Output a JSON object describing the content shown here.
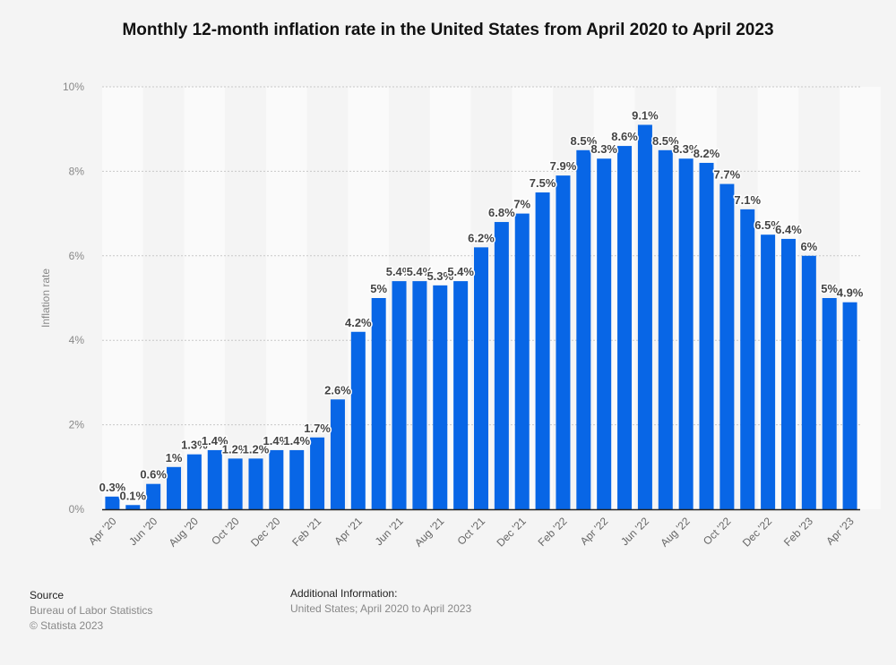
{
  "chart_data": {
    "type": "bar",
    "title": "Monthly 12-month inflation rate in the United States from April 2020 to April 2023",
    "xlabel": "",
    "ylabel": "Inflation rate",
    "ylim": [
      0,
      10
    ],
    "yticks": [
      0,
      2,
      4,
      6,
      8,
      10
    ],
    "ytick_labels": [
      "0%",
      "2%",
      "4%",
      "6%",
      "8%",
      "10%"
    ],
    "grid": true,
    "legend": "none",
    "bar_color": "#0866e6",
    "categories": [
      "Apr '20",
      "May '20",
      "Jun '20",
      "Jul '20",
      "Aug '20",
      "Sep '20",
      "Oct '20",
      "Nov '20",
      "Dec '20",
      "Jan '21",
      "Feb '21",
      "Mar '21",
      "Apr '21",
      "May '21",
      "Jun '21",
      "Jul '21",
      "Aug '21",
      "Sep '21",
      "Oct '21",
      "Nov '21",
      "Dec '21",
      "Jan '22",
      "Feb '22",
      "Mar '22",
      "Apr '22",
      "May '22",
      "Jun '22",
      "Jul '22",
      "Aug '22",
      "Sep '22",
      "Oct '22",
      "Nov '22",
      "Dec '22",
      "Jan '23",
      "Feb '23",
      "Mar '23",
      "Apr '23"
    ],
    "shown_xtick_labels": [
      "Apr '20",
      "Jun '20",
      "Aug '20",
      "Oct '20",
      "Dec '20",
      "Feb '21",
      "Apr '21",
      "Jun '21",
      "Aug '21",
      "Oct '21",
      "Dec '21",
      "Feb '22",
      "Apr '22",
      "Jun '22",
      "Aug '22",
      "Oct '22",
      "Dec '22",
      "Feb '23",
      "Apr '23"
    ],
    "values": [
      0.3,
      0.1,
      0.6,
      1,
      1.3,
      1.4,
      1.2,
      1.2,
      1.4,
      1.4,
      1.7,
      2.6,
      4.2,
      5,
      5.4,
      5.4,
      5.3,
      5.4,
      6.2,
      6.8,
      7,
      7.5,
      7.9,
      8.5,
      8.3,
      8.6,
      9.1,
      8.5,
      8.3,
      8.2,
      7.7,
      7.1,
      6.5,
      6.4,
      6,
      5,
      4.9
    ],
    "data_labels": [
      "0.3%",
      "0.1%",
      "0.6%",
      "1%",
      "1.3%",
      "1.4%",
      "1.2%",
      "1.2%",
      "1.4%",
      "1.4%",
      "1.7%",
      "2.6%",
      "4.2%",
      "5%",
      "5.4%",
      "5.4%",
      "5.3%",
      "5.4%",
      "6.2%",
      "6.8%",
      "7%",
      "7.5%",
      "7.9%",
      "8.5%",
      "8.3%",
      "8.6%",
      "9.1%",
      "8.5%",
      "8.3%",
      "8.2%",
      "7.7%",
      "7.1%",
      "6.5%",
      "6.4%",
      "6%",
      "5%",
      "4.9%"
    ]
  },
  "footer": {
    "source_heading": "Source",
    "source_name": "Bureau of Labor Statistics",
    "copyright": "© Statista 2023",
    "additional_heading": "Additional Information:",
    "additional_text": "United States; April 2020 to April 2023"
  }
}
